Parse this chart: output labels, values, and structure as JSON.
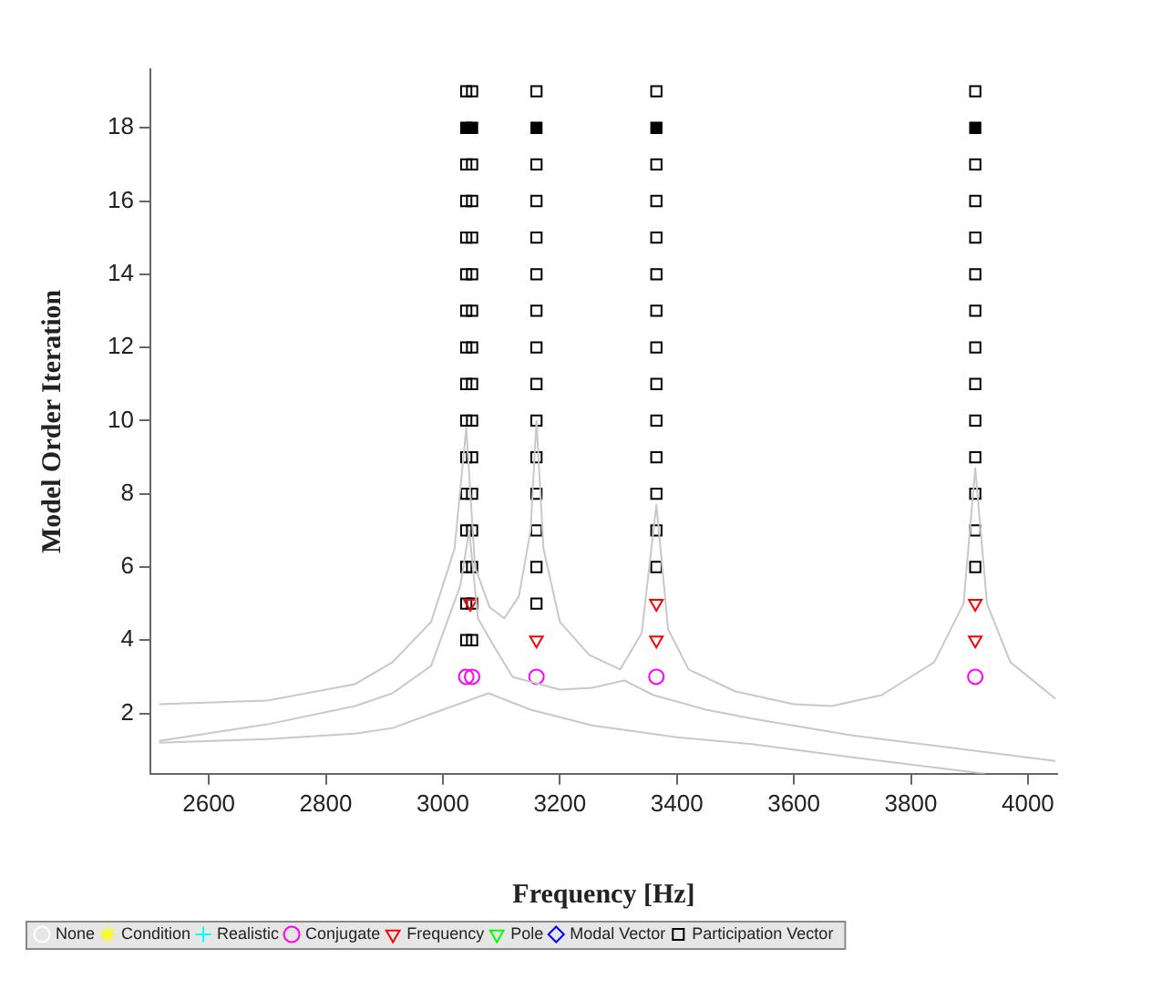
{
  "chart_data": {
    "type": "scatter",
    "xlabel": "Frequency [Hz]",
    "ylabel": "Model Order Iteration",
    "xlim": [
      2500,
      4050
    ],
    "ylim": [
      0.35,
      19.6
    ],
    "xticks": [
      2600,
      2800,
      3000,
      3200,
      3400,
      3600,
      3800,
      4000
    ],
    "yticks": [
      2,
      4,
      6,
      8,
      10,
      12,
      14,
      16,
      18
    ],
    "grid": false,
    "legend": "bottom left",
    "series": [
      {
        "type": "line",
        "color": "#c8c8c8",
        "marker": "none",
        "line_style": "solid",
        "x": [
          2515,
          2700,
          2850,
          2914,
          2980,
          3020,
          3040,
          3055,
          3080,
          3105,
          3130,
          3150,
          3160,
          3172,
          3200,
          3250,
          3303,
          3340,
          3365,
          3385,
          3420,
          3500,
          3600,
          3665,
          3750,
          3840,
          3890,
          3910,
          3930,
          3970,
          4047
        ],
        "values": [
          2.25,
          2.35,
          2.8,
          3.4,
          4.5,
          6.5,
          9.8,
          6,
          4.9,
          4.6,
          5.2,
          7,
          10,
          6.5,
          4.5,
          3.6,
          3.2,
          4.2,
          7.7,
          4.3,
          3.2,
          2.6,
          2.25,
          2.2,
          2.5,
          3.4,
          5,
          8.7,
          5,
          3.4,
          2.4
        ]
      },
      {
        "type": "line",
        "color": "#c8c8c8",
        "marker": "none",
        "line_style": "solid",
        "x": [
          2515,
          2700,
          2850,
          2914,
          2980,
          3030,
          3045,
          3060,
          3085,
          3119,
          3200,
          3255,
          3310,
          3360,
          3450,
          3528,
          3700,
          3800,
          4047
        ],
        "values": [
          1.25,
          1.7,
          2.2,
          2.55,
          3.3,
          5.5,
          7,
          4.6,
          3.9,
          3.0,
          2.65,
          2.7,
          2.9,
          2.5,
          2.1,
          1.86,
          1.4,
          1.2,
          0.7
        ]
      },
      {
        "type": "line",
        "color": "#c8c8c8",
        "marker": "none",
        "line_style": "solid",
        "x": [
          2515,
          2700,
          2850,
          2914,
          3000,
          3078,
          3150,
          3255,
          3400,
          3528,
          3700,
          3927
        ],
        "values": [
          1.2,
          1.3,
          1.45,
          1.6,
          2.1,
          2.55,
          2.1,
          1.67,
          1.35,
          1.16,
          0.8,
          0.35
        ]
      },
      {
        "name": "None",
        "color": "#ffffff",
        "marker": "circle"
      },
      {
        "name": "Condition",
        "color": "#ffff00",
        "marker": "star"
      },
      {
        "name": "Realistic",
        "color": "#00ffff",
        "marker": "cross"
      },
      {
        "name": "Conjugate",
        "color": "#ff00ff",
        "marker": "circle",
        "x": [
          3040,
          3050,
          3160,
          3365,
          3910
        ],
        "values": [
          3,
          3,
          3,
          3,
          3
        ]
      },
      {
        "name": "Frequency",
        "color": "#ff0000",
        "marker": "triangle",
        "x": [
          3047,
          3160,
          3365,
          3365,
          3910,
          3910
        ],
        "values": [
          5,
          4,
          4,
          5,
          4,
          5
        ]
      },
      {
        "name": "Pole",
        "color": "#00ff00",
        "marker": "triangle"
      },
      {
        "name": "Modal Vector",
        "color": "#0000ff",
        "marker": "diamond"
      },
      {
        "name": "Participation Vector",
        "color": "#000000",
        "marker": "square",
        "x": [
          3040,
          3040,
          3040,
          3040,
          3040,
          3040,
          3040,
          3040,
          3040,
          3040,
          3040,
          3040,
          3040,
          3040,
          3040,
          3050,
          3050,
          3050,
          3050,
          3050,
          3050,
          3050,
          3050,
          3050,
          3050,
          3050,
          3050,
          3050,
          3050,
          3050,
          3160,
          3160,
          3160,
          3160,
          3160,
          3160,
          3160,
          3160,
          3160,
          3160,
          3160,
          3160,
          3160,
          3160,
          3365,
          3365,
          3365,
          3365,
          3365,
          3365,
          3365,
          3365,
          3365,
          3365,
          3365,
          3365,
          3365,
          3910,
          3910,
          3910,
          3910,
          3910,
          3910,
          3910,
          3910,
          3910,
          3910,
          3910,
          3910,
          3910
        ],
        "values": [
          4,
          5,
          6,
          7,
          8,
          9,
          10,
          11,
          12,
          13,
          14,
          15,
          16,
          17,
          19,
          4,
          5,
          6,
          7,
          8,
          9,
          10,
          11,
          12,
          13,
          14,
          15,
          16,
          17,
          19,
          5,
          6,
          7,
          8,
          9,
          10,
          11,
          12,
          13,
          14,
          15,
          16,
          17,
          19,
          6,
          7,
          8,
          9,
          10,
          11,
          12,
          13,
          14,
          15,
          16,
          17,
          19,
          6,
          7,
          8,
          9,
          10,
          11,
          12,
          13,
          14,
          15,
          16,
          17,
          19
        ]
      },
      {
        "color": "#000000",
        "marker": "square",
        "x": [
          3040,
          3050,
          3160,
          3365,
          3910
        ],
        "values": [
          18,
          18,
          18,
          18,
          18
        ]
      }
    ]
  }
}
